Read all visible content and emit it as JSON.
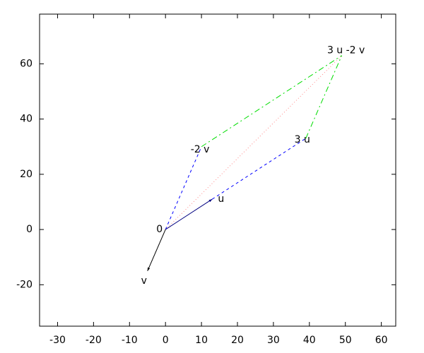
{
  "chart_data": {
    "type": "vector",
    "xlim": [
      -35,
      64
    ],
    "ylim": [
      -35,
      78
    ],
    "xticks": [
      -30,
      -20,
      -10,
      0,
      10,
      20,
      30,
      40,
      50,
      60
    ],
    "yticks": [
      -20,
      0,
      20,
      40,
      60
    ],
    "points": [
      {
        "label": "0",
        "x": 0,
        "y": 0
      },
      {
        "label": "u",
        "x": 13,
        "y": 11
      },
      {
        "label": "v",
        "x": -5,
        "y": -15
      },
      {
        "label": "-2 v",
        "x": 10,
        "y": 30
      },
      {
        "label": "3 u",
        "x": 39,
        "y": 33
      },
      {
        "label": "3 u -2 v",
        "x": 49,
        "y": 63
      }
    ],
    "segments": [
      {
        "x": [
          0,
          10
        ],
        "y": [
          0,
          30
        ],
        "color": "#0000ff",
        "dash": "dashed"
      },
      {
        "x": [
          13,
          39
        ],
        "y": [
          11,
          33
        ],
        "color": "#0000ff",
        "dash": "dashed"
      },
      {
        "x": [
          10,
          49
        ],
        "y": [
          30,
          63
        ],
        "color": "#00dd00",
        "dash": "dashdot"
      },
      {
        "x": [
          39,
          49
        ],
        "y": [
          33,
          63
        ],
        "color": "#00dd00",
        "dash": "dashdot"
      },
      {
        "x": [
          0,
          49
        ],
        "y": [
          0,
          63
        ],
        "color": "#ff8888",
        "dash": "dotted"
      },
      {
        "x": [
          0,
          13
        ],
        "y": [
          0,
          11
        ],
        "color": "#000080",
        "dash": "solid",
        "arrow": true
      },
      {
        "x": [
          0,
          -5
        ],
        "y": [
          0,
          -15
        ],
        "color": "#000000",
        "dash": "solid",
        "arrow": true
      }
    ]
  }
}
